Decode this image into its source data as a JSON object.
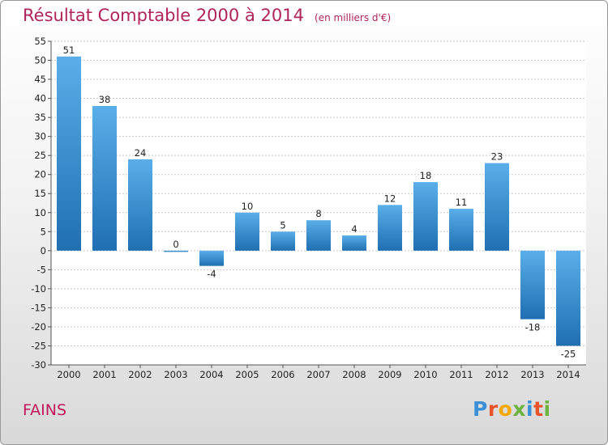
{
  "header": {
    "title": "Résultat Comptable 2000 à 2014",
    "subtitle": "(en milliers d'€)"
  },
  "footer": {
    "town": "FAINS",
    "logo_text": "Proxiti",
    "logo_colors": [
      "#3a8fd6",
      "#e8532b",
      "#f6a800",
      "#6cb33f",
      "#3a8fd6",
      "#e8532b",
      "#6cb33f"
    ]
  },
  "colors": {
    "title": "#b0245c",
    "bar_top": "#5aaee9",
    "bar_bottom": "#1f6fb2",
    "grid": "#c8c8c8"
  },
  "chart_data": {
    "type": "bar",
    "title": "Résultat Comptable 2000 à 2014",
    "subtitle": "(en milliers d'€)",
    "categories": [
      "2000",
      "2001",
      "2002",
      "2003",
      "2004",
      "2005",
      "2006",
      "2007",
      "2008",
      "2009",
      "2010",
      "2011",
      "2012",
      "2013",
      "2014"
    ],
    "values": [
      51,
      38,
      24,
      0,
      -4,
      10,
      5,
      8,
      4,
      12,
      18,
      11,
      23,
      -18,
      -25
    ],
    "ylim": [
      -30,
      55
    ],
    "yticks": [
      55,
      50,
      45,
      40,
      35,
      30,
      25,
      20,
      15,
      10,
      5,
      0,
      -5,
      -10,
      -15,
      -20,
      -25,
      -30
    ],
    "grid": true,
    "legend": "none"
  }
}
